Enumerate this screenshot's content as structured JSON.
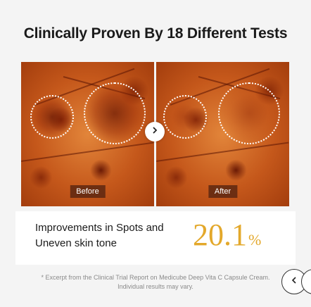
{
  "title": "Clinically Proven By 18 Different Tests",
  "photos": {
    "before_label": "Before",
    "after_label": "After"
  },
  "result": {
    "description_line1": "Improvements in Spots and",
    "description_line2": "Uneven skin tone",
    "value": "20.1",
    "unit": "%"
  },
  "footnote": {
    "line1": "* Excerpt from the Clinical Trial Report on Medicube Deep Vita C Capsule Cream.",
    "line2": "Individual results may vary."
  },
  "colors": {
    "accent": "#e3a82b",
    "title": "#1a1a1a"
  },
  "icons": {
    "compare": "chevron-right-icon",
    "prev": "chevron-left-icon"
  }
}
